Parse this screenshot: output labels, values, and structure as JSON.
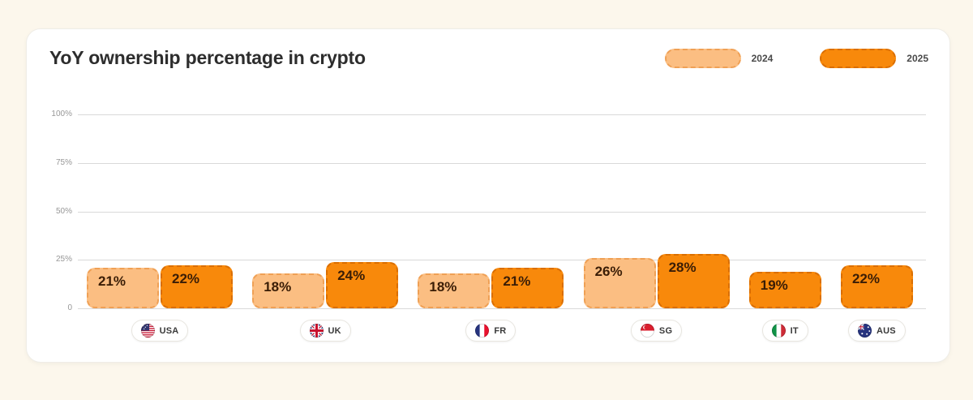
{
  "header": {
    "title": "YoY ownership percentage in crypto",
    "legend": [
      {
        "label": "2024",
        "fill": "#FBBE82",
        "border": "#EFA055"
      },
      {
        "label": "2025",
        "fill": "#F8890B",
        "border": "#DA6E00"
      }
    ]
  },
  "chart_data": {
    "type": "bar",
    "title": "YoY ownership percentage in crypto",
    "categories": [
      "USA",
      "UK",
      "FR",
      "SG",
      "IT",
      "AUS"
    ],
    "category_flags": [
      "usa-flag-icon",
      "uk-flag-icon",
      "fr-flag-icon",
      "sg-flag-icon",
      "it-flag-icon",
      "aus-flag-icon"
    ],
    "series": [
      {
        "name": "2024",
        "color": "#FBBE82",
        "border_color": "#EFA055",
        "values": [
          21,
          18,
          18,
          26,
          null,
          null
        ]
      },
      {
        "name": "2025",
        "color": "#F8890B",
        "border_color": "#DA6E00",
        "values": [
          22,
          24,
          21,
          28,
          19,
          22
        ]
      }
    ],
    "value_suffix": "%",
    "ylim": [
      0,
      100
    ],
    "yticks": [
      {
        "value": 100,
        "label": "100%"
      },
      {
        "value": 75,
        "label": "75%"
      },
      {
        "value": 50,
        "label": "50%"
      },
      {
        "value": 25,
        "label": "25%"
      },
      {
        "value": 0,
        "label": "0"
      }
    ],
    "grid": "horizontal",
    "legend_position": "top-right"
  },
  "colors": {
    "page_background": "#FCF7EC",
    "card_background": "#FFFFFF",
    "gridline": "#D9D9D9",
    "tick_text": "#979797",
    "bar_value_text": "#3A1D06"
  }
}
